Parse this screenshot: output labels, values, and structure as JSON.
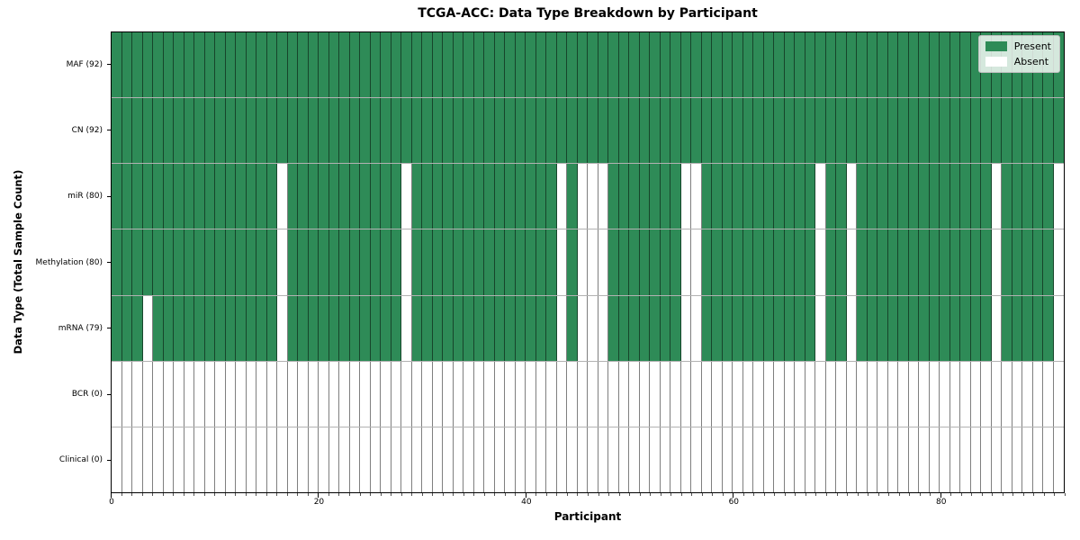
{
  "title": "TCGA-ACC: Data Type Breakdown by Participant",
  "axes": {
    "x_title": "Participant",
    "y_title": "Data Type (Total Sample Count)"
  },
  "legend": {
    "items": [
      {
        "label": "Present",
        "color": "#2e8b57"
      },
      {
        "label": "Absent",
        "color": "#ffffff"
      }
    ]
  },
  "chart_data": {
    "type": "heatmap",
    "title": "TCGA-ACC: Data Type Breakdown by Participant",
    "xlabel": "Participant",
    "ylabel": "Data Type (Total Sample Count)",
    "n_participants": 92,
    "x_ticks": [
      0,
      20,
      40,
      60,
      80
    ],
    "legend": [
      "Present",
      "Absent"
    ],
    "legend_position": "upper right",
    "colors": {
      "present": "#2e8b57",
      "absent": "#ffffff"
    },
    "rows": [
      {
        "label": "MAF (92)",
        "data_type": "MAF",
        "present_count": 92,
        "absent_participants": []
      },
      {
        "label": "CN (92)",
        "data_type": "CN",
        "present_count": 92,
        "absent_participants": []
      },
      {
        "label": "miR (80)",
        "data_type": "miR",
        "present_count": 80,
        "absent_participants": [
          16,
          28,
          43,
          45,
          46,
          47,
          55,
          56,
          68,
          71,
          85,
          91
        ]
      },
      {
        "label": "Methylation (80)",
        "data_type": "Methylation",
        "present_count": 80,
        "absent_participants": [
          16,
          28,
          43,
          45,
          46,
          47,
          55,
          56,
          68,
          71,
          85,
          91
        ]
      },
      {
        "label": "mRNA (79)",
        "data_type": "mRNA",
        "present_count": 79,
        "absent_participants": [
          3,
          16,
          28,
          43,
          45,
          46,
          47,
          55,
          56,
          68,
          71,
          85,
          91
        ]
      },
      {
        "label": "BCR (0)",
        "data_type": "BCR",
        "present_count": 0,
        "absent_participants": "ALL"
      },
      {
        "label": "Clinical (0)",
        "data_type": "Clinical",
        "present_count": 0,
        "absent_participants": "ALL"
      }
    ]
  }
}
